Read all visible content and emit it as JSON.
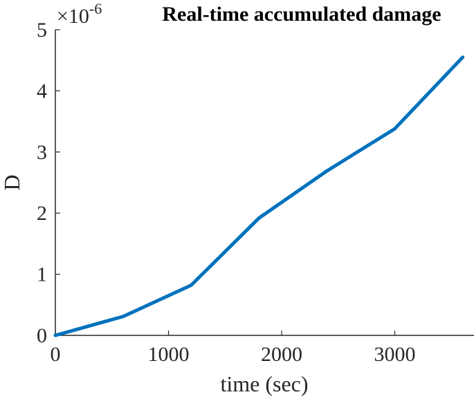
{
  "chart_data": {
    "type": "line",
    "title": "Real-time accumulated damage",
    "xlabel": "time (sec)",
    "ylabel": "D",
    "y_exponent": {
      "base": "×10",
      "power": "-6"
    },
    "xlim": [
      0,
      3700
    ],
    "ylim": [
      0,
      5
    ],
    "x_ticks": [
      0,
      1000,
      2000,
      3000
    ],
    "x_tick_labels": [
      "0",
      "1000",
      "2000",
      "3000"
    ],
    "y_ticks": [
      0,
      1,
      2,
      3,
      4,
      5
    ],
    "y_tick_labels": [
      "0",
      "1",
      "2",
      "3",
      "4",
      "5"
    ],
    "grid": false,
    "series": [
      {
        "color": "#0072BD",
        "x": [
          0,
          600,
          1200,
          1800,
          2400,
          3000,
          3600
        ],
        "y": [
          0,
          0.31,
          0.82,
          1.92,
          2.69,
          3.38,
          4.55
        ]
      }
    ]
  }
}
